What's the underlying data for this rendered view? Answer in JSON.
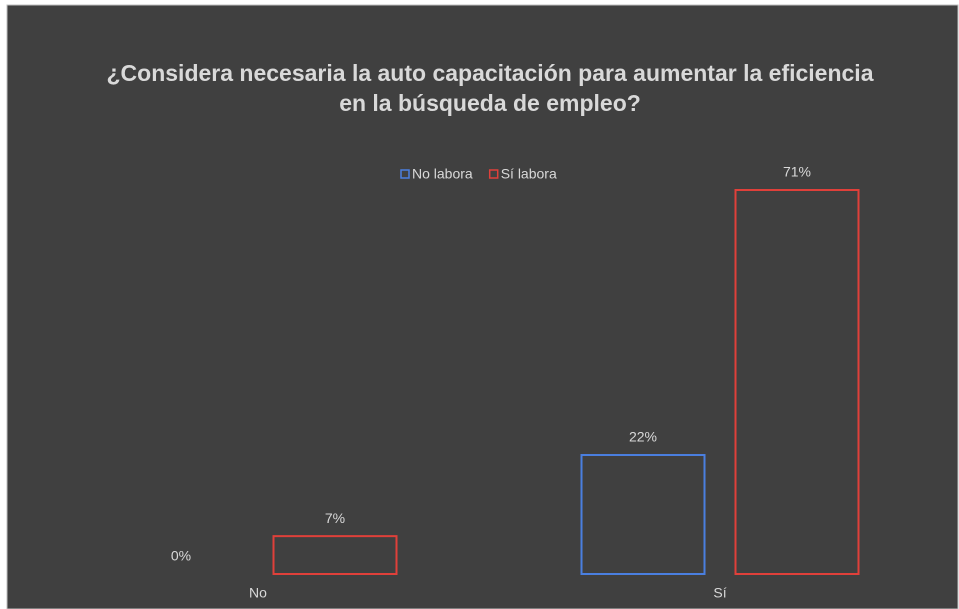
{
  "chart_data": {
    "type": "bar",
    "title": "¿Considera necesaria la auto capacitación para aumentar la eficiencia en la búsqueda de empleo?",
    "categories": [
      "No",
      "Sí"
    ],
    "series": [
      {
        "name": "No labora",
        "color": "#4a7fe0",
        "values": [
          0,
          22
        ],
        "value_labels": [
          "0%",
          "22%"
        ]
      },
      {
        "name": "Sí labora",
        "color": "#e0403a",
        "values": [
          7,
          71
        ],
        "value_labels": [
          "7%",
          "71%"
        ]
      }
    ],
    "legend": "top"
  }
}
